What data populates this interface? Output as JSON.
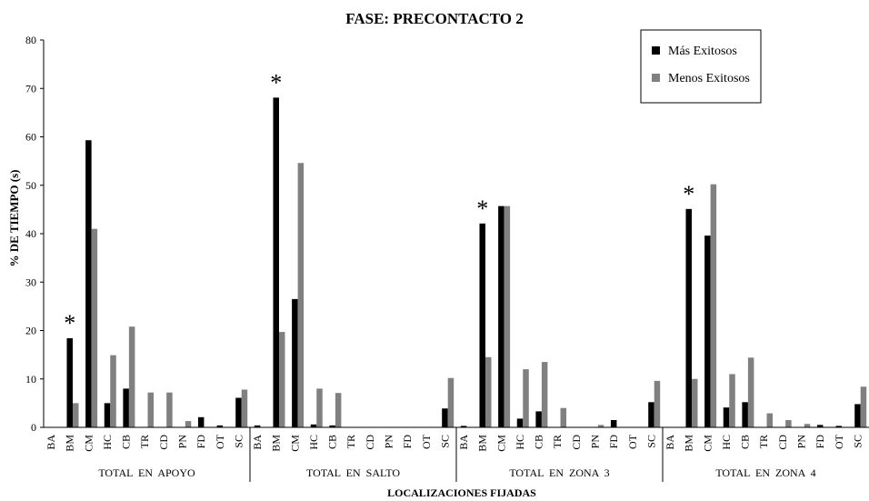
{
  "chart_data": {
    "type": "bar",
    "title": "FASE: PRECONTACTO 2",
    "ylabel": "% DE TIEMPO (s)",
    "xlabel": "LOCALIZACIONES  FIJADAS",
    "ylim": [
      0,
      80
    ],
    "yticks": [
      0,
      10,
      20,
      30,
      40,
      50,
      60,
      70,
      80
    ],
    "legend_position": "top-right",
    "categories": [
      "BA",
      "BM",
      "CM",
      "HC",
      "CB",
      "TR",
      "CD",
      "PN",
      "FD",
      "OT",
      "SC"
    ],
    "series": [
      {
        "name": "Más Exitosos",
        "color": "#000000"
      },
      {
        "name": "Menos Exitosos",
        "color": "#808080"
      }
    ],
    "groups": [
      {
        "label": "TOTAL  EN  APOYO",
        "values": [
          [
            0,
            0
          ],
          [
            18.4,
            5
          ],
          [
            59.3,
            41
          ],
          [
            5,
            14.9
          ],
          [
            8,
            20.8
          ],
          [
            0,
            7.2
          ],
          [
            0,
            7.2
          ],
          [
            0,
            1.3
          ],
          [
            2.1,
            0
          ],
          [
            0.4,
            0
          ],
          [
            6.1,
            7.8
          ]
        ],
        "asterisk_category": "BM"
      },
      {
        "label": "TOTAL  EN  SALTO",
        "values": [
          [
            0.4,
            0
          ],
          [
            68.1,
            19.7
          ],
          [
            26.5,
            54.6
          ],
          [
            0.6,
            8
          ],
          [
            0.4,
            7.1
          ],
          [
            0,
            0
          ],
          [
            0,
            0
          ],
          [
            0,
            0
          ],
          [
            0,
            0
          ],
          [
            0,
            0
          ],
          [
            3.9,
            10.2
          ]
        ],
        "asterisk_category": "BM"
      },
      {
        "label": "TOTAL  EN  ZONA  3",
        "values": [
          [
            0.3,
            0
          ],
          [
            42.1,
            14.5
          ],
          [
            45.7,
            45.7
          ],
          [
            1.8,
            12
          ],
          [
            3.3,
            13.5
          ],
          [
            0,
            4
          ],
          [
            0,
            0
          ],
          [
            0,
            0.5
          ],
          [
            1.5,
            0
          ],
          [
            0,
            0
          ],
          [
            5.2,
            9.6
          ]
        ],
        "asterisk_category": "BM"
      },
      {
        "label": "TOTAL  EN  ZONA  4",
        "values": [
          [
            0,
            0
          ],
          [
            45.1,
            10
          ],
          [
            39.6,
            50.2
          ],
          [
            4.1,
            11
          ],
          [
            5.2,
            14.4
          ],
          [
            0,
            2.9
          ],
          [
            0,
            1.5
          ],
          [
            0,
            0.7
          ],
          [
            0.5,
            0
          ],
          [
            0.3,
            0
          ],
          [
            4.8,
            8.4
          ]
        ],
        "asterisk_category": "BM"
      }
    ],
    "asterisk_symbol": "*"
  }
}
